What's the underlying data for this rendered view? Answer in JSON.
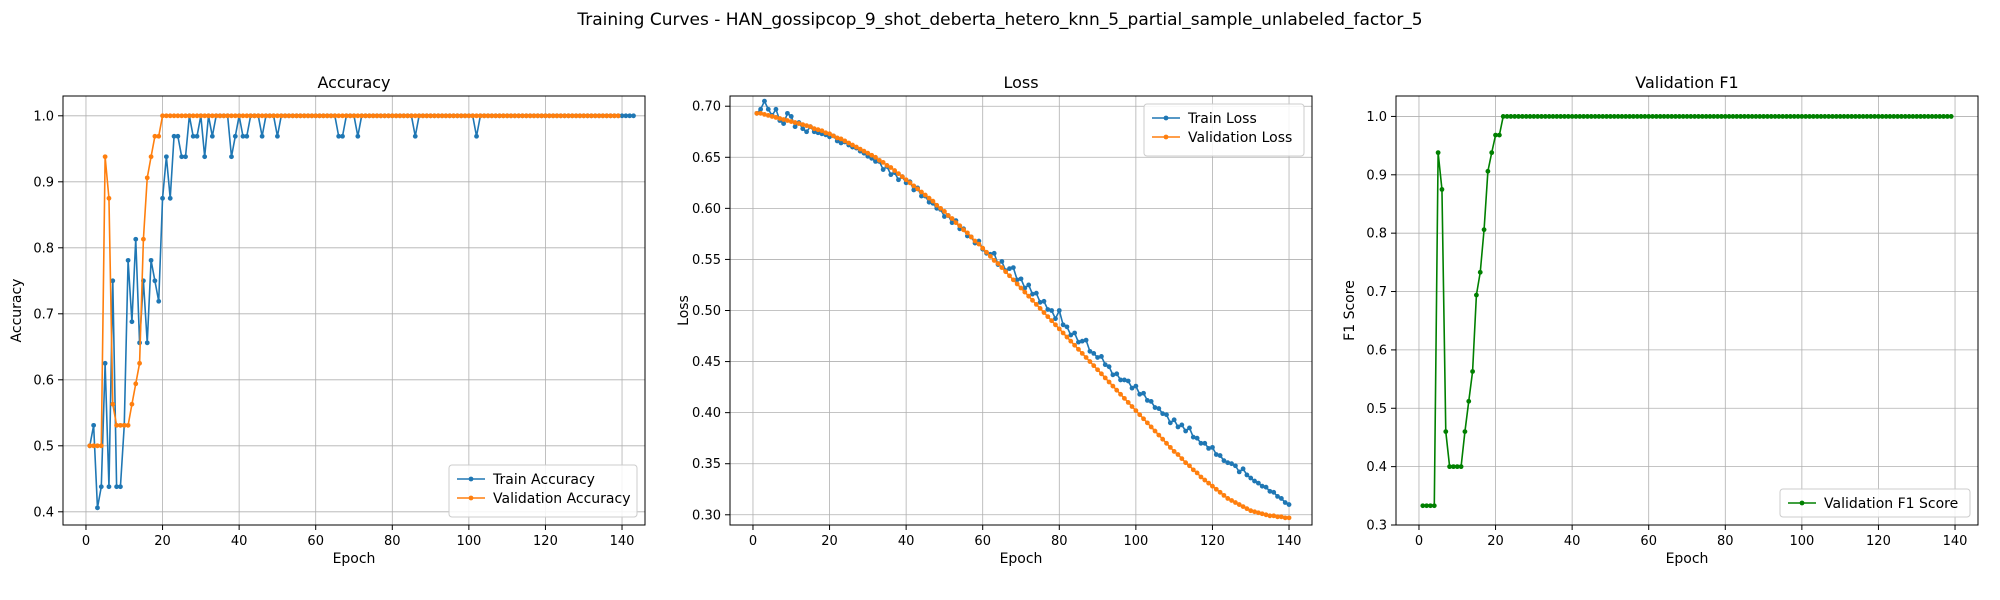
{
  "figure": {
    "suptitle": "Training Curves - HAN_gossipcop_9_shot_deberta_hetero_knn_5_partial_sample_unlabeled_factor_5"
  },
  "chart_data": [
    {
      "type": "line",
      "title": "Accuracy",
      "xlabel": "Epoch",
      "ylabel": "Accuracy",
      "xlim": [
        -6,
        146
      ],
      "ylim": [
        0.38,
        1.03
      ],
      "xticks": [
        0,
        20,
        40,
        60,
        80,
        100,
        120,
        140
      ],
      "yticks": [
        0.4,
        0.5,
        0.6,
        0.7,
        0.8,
        0.9,
        1.0
      ],
      "ytick_labels": [
        "0.4",
        "0.5",
        "0.6",
        "0.7",
        "0.8",
        "0.9",
        "1.0"
      ],
      "grid": true,
      "legend_position": "lower-right",
      "series": [
        {
          "name": "Train Accuracy",
          "color": "#1f77b4",
          "x_start": 1,
          "values": [
            0.5,
            0.531,
            0.406,
            0.438,
            0.625,
            0.438,
            0.75,
            0.438,
            0.438,
            0.531,
            0.781,
            0.688,
            0.813,
            0.656,
            0.75,
            0.656,
            0.781,
            0.75,
            0.719,
            0.875,
            0.938,
            0.875,
            0.969,
            0.969,
            0.938,
            0.938,
            1.0,
            0.969,
            0.969,
            1.0,
            0.938,
            1.0,
            0.969,
            1.0,
            1.0,
            1.0,
            1.0,
            0.938,
            0.969,
            1.0,
            0.969,
            0.969,
            1.0,
            1.0,
            1.0,
            0.969,
            1.0,
            1.0,
            1.0,
            0.969,
            1.0,
            1.0,
            1.0,
            1.0,
            1.0,
            1.0,
            1.0,
            1.0,
            1.0,
            1.0,
            1.0,
            1.0,
            1.0,
            1.0,
            1.0,
            0.969,
            0.969,
            1.0,
            1.0,
            1.0,
            0.969,
            1.0,
            1.0,
            1.0,
            1.0,
            1.0,
            1.0,
            1.0,
            1.0,
            1.0,
            1.0,
            1.0,
            1.0,
            1.0,
            1.0,
            0.969,
            1.0,
            1.0,
            1.0,
            1.0,
            1.0,
            1.0,
            1.0,
            1.0,
            1.0,
            1.0,
            1.0,
            1.0,
            1.0,
            1.0,
            1.0,
            0.969,
            1.0,
            1.0,
            1.0,
            1.0,
            1.0,
            1.0,
            1.0,
            1.0,
            1.0,
            1.0,
            1.0,
            1.0,
            1.0,
            1.0,
            1.0,
            1.0,
            1.0,
            1.0,
            1.0,
            1.0,
            1.0,
            1.0,
            1.0,
            1.0,
            1.0,
            1.0,
            1.0,
            1.0,
            1.0,
            1.0,
            1.0,
            1.0,
            1.0,
            1.0,
            1.0,
            1.0,
            1.0,
            1.0,
            1.0,
            1.0,
            1.0
          ]
        },
        {
          "name": "Validation Accuracy",
          "color": "#ff7f0e",
          "x_start": 1,
          "values": [
            0.5,
            0.5,
            0.5,
            0.5,
            0.938,
            0.875,
            0.563,
            0.531,
            0.531,
            0.531,
            0.531,
            0.563,
            0.594,
            0.625,
            0.813,
            0.906,
            0.938,
            0.969,
            0.969,
            1.0,
            1.0,
            1.0,
            1.0,
            1.0,
            1.0,
            1.0,
            1.0,
            1.0,
            1.0,
            1.0,
            1.0,
            1.0,
            1.0,
            1.0,
            1.0,
            1.0,
            1.0,
            1.0,
            1.0,
            1.0,
            1.0,
            1.0,
            1.0,
            1.0,
            1.0,
            1.0,
            1.0,
            1.0,
            1.0,
            1.0,
            1.0,
            1.0,
            1.0,
            1.0,
            1.0,
            1.0,
            1.0,
            1.0,
            1.0,
            1.0,
            1.0,
            1.0,
            1.0,
            1.0,
            1.0,
            1.0,
            1.0,
            1.0,
            1.0,
            1.0,
            1.0,
            1.0,
            1.0,
            1.0,
            1.0,
            1.0,
            1.0,
            1.0,
            1.0,
            1.0,
            1.0,
            1.0,
            1.0,
            1.0,
            1.0,
            1.0,
            1.0,
            1.0,
            1.0,
            1.0,
            1.0,
            1.0,
            1.0,
            1.0,
            1.0,
            1.0,
            1.0,
            1.0,
            1.0,
            1.0,
            1.0,
            1.0,
            1.0,
            1.0,
            1.0,
            1.0,
            1.0,
            1.0,
            1.0,
            1.0,
            1.0,
            1.0,
            1.0,
            1.0,
            1.0,
            1.0,
            1.0,
            1.0,
            1.0,
            1.0,
            1.0,
            1.0,
            1.0,
            1.0,
            1.0,
            1.0,
            1.0,
            1.0,
            1.0,
            1.0,
            1.0,
            1.0,
            1.0,
            1.0,
            1.0,
            1.0,
            1.0,
            1.0,
            1.0
          ]
        }
      ]
    },
    {
      "type": "line",
      "title": "Loss",
      "xlabel": "Epoch",
      "ylabel": "Loss",
      "xlim": [
        -6,
        146
      ],
      "ylim": [
        0.29,
        0.71
      ],
      "xticks": [
        0,
        20,
        40,
        60,
        80,
        100,
        120,
        140
      ],
      "yticks": [
        0.3,
        0.35,
        0.4,
        0.45,
        0.5,
        0.55,
        0.6,
        0.65,
        0.7
      ],
      "ytick_labels": [
        "0.30",
        "0.35",
        "0.40",
        "0.45",
        "0.50",
        "0.55",
        "0.60",
        "0.65",
        "0.70"
      ],
      "grid": true,
      "legend_position": "upper-right",
      "series": [
        {
          "name": "Train Loss",
          "color": "#1f77b4",
          "x_start": 1,
          "values": [
            0.693,
            0.697,
            0.705,
            0.697,
            0.691,
            0.697,
            0.686,
            0.683,
            0.693,
            0.69,
            0.68,
            0.684,
            0.678,
            0.675,
            0.68,
            0.675,
            0.674,
            0.673,
            0.672,
            0.67,
            0.671,
            0.666,
            0.664,
            0.665,
            0.662,
            0.66,
            0.659,
            0.656,
            0.654,
            0.651,
            0.649,
            0.646,
            0.646,
            0.638,
            0.641,
            0.633,
            0.635,
            0.628,
            0.631,
            0.625,
            0.626,
            0.618,
            0.62,
            0.612,
            0.612,
            0.606,
            0.605,
            0.6,
            0.599,
            0.592,
            0.593,
            0.586,
            0.588,
            0.58,
            0.58,
            0.573,
            0.572,
            0.566,
            0.568,
            0.56,
            0.556,
            0.555,
            0.556,
            0.545,
            0.548,
            0.539,
            0.541,
            0.542,
            0.53,
            0.531,
            0.522,
            0.525,
            0.516,
            0.517,
            0.508,
            0.509,
            0.501,
            0.5,
            0.492,
            0.5,
            0.486,
            0.484,
            0.476,
            0.478,
            0.469,
            0.47,
            0.471,
            0.46,
            0.458,
            0.454,
            0.455,
            0.447,
            0.445,
            0.437,
            0.438,
            0.432,
            0.432,
            0.431,
            0.424,
            0.426,
            0.418,
            0.419,
            0.412,
            0.411,
            0.405,
            0.404,
            0.399,
            0.398,
            0.39,
            0.393,
            0.386,
            0.388,
            0.382,
            0.385,
            0.376,
            0.375,
            0.37,
            0.37,
            0.365,
            0.366,
            0.359,
            0.358,
            0.353,
            0.351,
            0.35,
            0.348,
            0.342,
            0.345,
            0.339,
            0.336,
            0.333,
            0.331,
            0.328,
            0.327,
            0.323,
            0.322,
            0.318,
            0.316,
            0.312,
            0.31
          ]
        },
        {
          "name": "Validation Loss",
          "color": "#ff7f0e",
          "x_start": 1,
          "values": [
            0.693,
            0.693,
            0.692,
            0.691,
            0.69,
            0.689,
            0.688,
            0.687,
            0.686,
            0.685,
            0.684,
            0.683,
            0.682,
            0.681,
            0.68,
            0.678,
            0.677,
            0.676,
            0.674,
            0.673,
            0.671,
            0.669,
            0.668,
            0.666,
            0.664,
            0.662,
            0.66,
            0.658,
            0.656,
            0.654,
            0.652,
            0.65,
            0.647,
            0.645,
            0.642,
            0.64,
            0.637,
            0.634,
            0.631,
            0.628,
            0.625,
            0.622,
            0.619,
            0.616,
            0.613,
            0.61,
            0.607,
            0.603,
            0.6,
            0.597,
            0.593,
            0.59,
            0.586,
            0.583,
            0.579,
            0.576,
            0.572,
            0.568,
            0.565,
            0.561,
            0.557,
            0.553,
            0.549,
            0.546,
            0.542,
            0.538,
            0.534,
            0.53,
            0.526,
            0.522,
            0.518,
            0.514,
            0.51,
            0.506,
            0.502,
            0.498,
            0.494,
            0.49,
            0.486,
            0.482,
            0.478,
            0.474,
            0.47,
            0.466,
            0.462,
            0.458,
            0.454,
            0.45,
            0.446,
            0.442,
            0.438,
            0.434,
            0.43,
            0.426,
            0.422,
            0.418,
            0.414,
            0.41,
            0.406,
            0.402,
            0.398,
            0.394,
            0.39,
            0.386,
            0.382,
            0.378,
            0.374,
            0.37,
            0.366,
            0.362,
            0.359,
            0.355,
            0.351,
            0.348,
            0.344,
            0.341,
            0.337,
            0.334,
            0.331,
            0.328,
            0.325,
            0.322,
            0.319,
            0.316,
            0.314,
            0.312,
            0.31,
            0.308,
            0.306,
            0.304,
            0.303,
            0.302,
            0.301,
            0.3,
            0.299,
            0.299,
            0.298,
            0.298,
            0.297,
            0.297
          ]
        }
      ]
    },
    {
      "type": "line",
      "title": "Validation F1",
      "xlabel": "Epoch",
      "ylabel": "F1 Score",
      "xlim": [
        -6,
        146
      ],
      "ylim": [
        0.3,
        1.035
      ],
      "xticks": [
        0,
        20,
        40,
        60,
        80,
        100,
        120,
        140
      ],
      "yticks": [
        0.3,
        0.4,
        0.5,
        0.6,
        0.7,
        0.8,
        0.9,
        1.0
      ],
      "ytick_labels": [
        "0.3",
        "0.4",
        "0.5",
        "0.6",
        "0.7",
        "0.8",
        "0.9",
        "1.0"
      ],
      "grid": true,
      "legend_position": "lower-right",
      "series": [
        {
          "name": "Validation F1 Score",
          "color": "#008000",
          "x_start": 1,
          "values": [
            0.333,
            0.333,
            0.333,
            0.333,
            0.938,
            0.875,
            0.46,
            0.4,
            0.4,
            0.4,
            0.4,
            0.46,
            0.512,
            0.563,
            0.694,
            0.733,
            0.806,
            0.906,
            0.938,
            0.968,
            0.968,
            1.0,
            1.0,
            1.0,
            1.0,
            1.0,
            1.0,
            1.0,
            1.0,
            1.0,
            1.0,
            1.0,
            1.0,
            1.0,
            1.0,
            1.0,
            1.0,
            1.0,
            1.0,
            1.0,
            1.0,
            1.0,
            1.0,
            1.0,
            1.0,
            1.0,
            1.0,
            1.0,
            1.0,
            1.0,
            1.0,
            1.0,
            1.0,
            1.0,
            1.0,
            1.0,
            1.0,
            1.0,
            1.0,
            1.0,
            1.0,
            1.0,
            1.0,
            1.0,
            1.0,
            1.0,
            1.0,
            1.0,
            1.0,
            1.0,
            1.0,
            1.0,
            1.0,
            1.0,
            1.0,
            1.0,
            1.0,
            1.0,
            1.0,
            1.0,
            1.0,
            1.0,
            1.0,
            1.0,
            1.0,
            1.0,
            1.0,
            1.0,
            1.0,
            1.0,
            1.0,
            1.0,
            1.0,
            1.0,
            1.0,
            1.0,
            1.0,
            1.0,
            1.0,
            1.0,
            1.0,
            1.0,
            1.0,
            1.0,
            1.0,
            1.0,
            1.0,
            1.0,
            1.0,
            1.0,
            1.0,
            1.0,
            1.0,
            1.0,
            1.0,
            1.0,
            1.0,
            1.0,
            1.0,
            1.0,
            1.0,
            1.0,
            1.0,
            1.0,
            1.0,
            1.0,
            1.0,
            1.0,
            1.0,
            1.0,
            1.0,
            1.0,
            1.0,
            1.0,
            1.0,
            1.0,
            1.0,
            1.0,
            1.0
          ]
        }
      ]
    }
  ]
}
